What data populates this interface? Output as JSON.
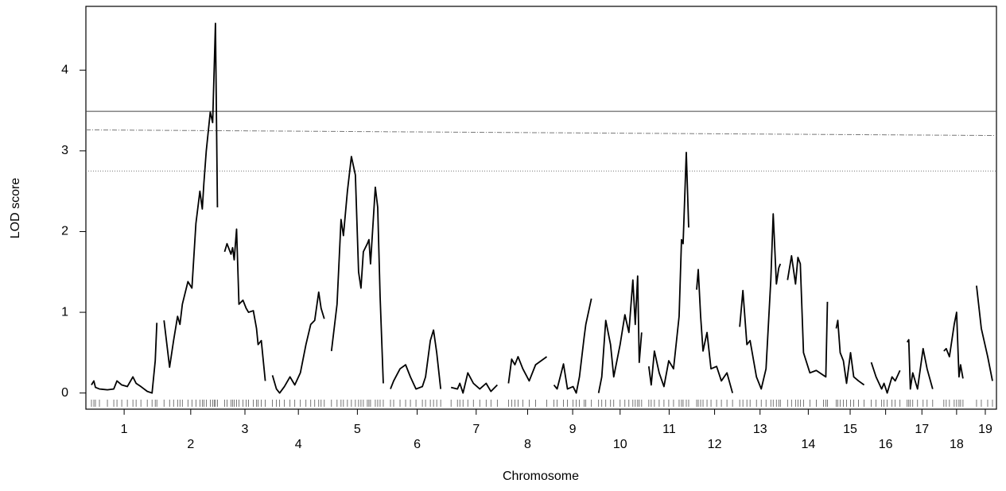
{
  "chart_data": {
    "type": "lod",
    "xlabel": "Chromosome",
    "ylabel": "LOD score",
    "ylim": [
      -0.2,
      4.79
    ],
    "yticks": [
      0,
      1,
      2,
      3,
      4
    ],
    "color": "#000000",
    "thresholds": [
      {
        "values": [
          3.49,
          3.49
        ],
        "style": "solid"
      },
      {
        "values": [
          3.26,
          3.19
        ],
        "style": "dashed"
      },
      {
        "values": [
          2.75,
          2.75
        ],
        "style": "dotted"
      }
    ],
    "series": [
      {
        "name": "1",
        "xlim": [
          0,
          82
        ],
        "x": [
          0,
          3,
          5,
          10,
          20,
          28,
          32,
          38,
          45,
          52,
          56,
          62,
          70,
          76,
          80,
          82
        ],
        "values": [
          0.1,
          0.15,
          0.07,
          0.05,
          0.04,
          0.05,
          0.15,
          0.1,
          0.08,
          0.2,
          0.12,
          0.08,
          0.02,
          0.0,
          0.4,
          0.87
        ]
      },
      {
        "name": "2",
        "xlim": [
          0,
          67
        ],
        "x": [
          0,
          7,
          12,
          17,
          20,
          23,
          30,
          35,
          40,
          45,
          48,
          50,
          53,
          58,
          61,
          63,
          64.5,
          67
        ],
        "values": [
          0.9,
          0.32,
          0.65,
          0.95,
          0.85,
          1.1,
          1.38,
          1.3,
          2.1,
          2.5,
          2.28,
          2.6,
          3.0,
          3.48,
          3.35,
          4.05,
          4.58,
          2.3
        ]
      },
      {
        "name": "3",
        "xlim": [
          0,
          51
        ],
        "x": [
          0,
          3,
          8,
          10,
          12,
          15,
          18,
          23,
          27,
          30,
          36,
          40,
          42,
          46,
          51
        ],
        "values": [
          1.75,
          1.85,
          1.72,
          1.8,
          1.65,
          2.03,
          1.1,
          1.15,
          1.05,
          1.0,
          1.02,
          0.8,
          0.6,
          0.65,
          0.15
        ]
      },
      {
        "name": "4",
        "xlim": [
          0,
          65
        ],
        "x": [
          0,
          5,
          9,
          15,
          22,
          28,
          35,
          42,
          48,
          53,
          58,
          61,
          65
        ],
        "values": [
          0.22,
          0.05,
          0.0,
          0.08,
          0.2,
          0.1,
          0.25,
          0.6,
          0.85,
          0.9,
          1.25,
          1.05,
          0.92
        ]
      },
      {
        "name": "5",
        "xlim": [
          0,
          65
        ],
        "x": [
          0,
          7,
          12,
          15,
          20,
          25,
          30,
          34,
          37,
          40,
          45,
          47,
          49,
          55,
          58,
          61,
          65
        ],
        "values": [
          0.52,
          1.1,
          2.15,
          1.95,
          2.5,
          2.93,
          2.7,
          1.5,
          1.3,
          1.75,
          1.85,
          1.9,
          1.6,
          2.55,
          2.3,
          1.2,
          0.12
        ]
      },
      {
        "name": "6",
        "xlim": [
          0,
          67
        ],
        "x": [
          0,
          4,
          12,
          19,
          25,
          32,
          40,
          44,
          50,
          54,
          58,
          63
        ],
        "values": [
          0.05,
          0.15,
          0.3,
          0.35,
          0.2,
          0.05,
          0.08,
          0.2,
          0.65,
          0.78,
          0.5,
          0.05
        ]
      },
      {
        "name": "7",
        "xlim": [
          0,
          63
        ],
        "x": [
          0,
          8,
          11,
          15,
          21,
          28,
          36,
          44,
          50,
          58
        ],
        "values": [
          0.07,
          0.05,
          0.12,
          0.0,
          0.25,
          0.12,
          0.05,
          0.12,
          0.02,
          0.1
        ]
      },
      {
        "name": "8",
        "xlim": [
          0,
          48
        ],
        "x": [
          0,
          4,
          8,
          12,
          18,
          26,
          34,
          48
        ],
        "values": [
          0.12,
          0.42,
          0.35,
          0.45,
          0.3,
          0.15,
          0.35,
          0.45
        ]
      },
      {
        "name": "9",
        "xlim": [
          0,
          47
        ],
        "x": [
          0,
          4,
          12,
          17,
          24,
          28,
          32,
          38,
          40,
          47
        ],
        "values": [
          0.1,
          0.05,
          0.36,
          0.05,
          0.08,
          0.0,
          0.2,
          0.7,
          0.85,
          1.17
        ]
      },
      {
        "name": "10",
        "xlim": [
          0,
          54
        ],
        "x": [
          0,
          4,
          9,
          15,
          19,
          27,
          33,
          38,
          43,
          46,
          49,
          51,
          54
        ],
        "values": [
          0.0,
          0.2,
          0.9,
          0.6,
          0.2,
          0.6,
          0.97,
          0.75,
          1.4,
          0.85,
          1.45,
          0.38,
          0.75
        ]
      },
      {
        "name": "11",
        "xlim": [
          0,
          51
        ],
        "x": [
          0,
          3,
          7,
          13,
          19,
          25,
          31,
          38,
          41,
          43,
          47,
          50
        ],
        "values": [
          0.33,
          0.1,
          0.52,
          0.25,
          0.08,
          0.4,
          0.3,
          0.95,
          1.9,
          1.85,
          2.98,
          2.05
        ]
      },
      {
        "name": "12",
        "xlim": [
          0,
          45
        ],
        "x": [
          0,
          2,
          5,
          8,
          13,
          18,
          25,
          31,
          38,
          45
        ],
        "values": [
          1.28,
          1.53,
          0.95,
          0.52,
          0.75,
          0.3,
          0.33,
          0.15,
          0.25,
          0.0
        ]
      },
      {
        "name": "13",
        "xlim": [
          0,
          51
        ],
        "x": [
          0,
          4,
          9,
          13,
          21,
          27,
          33,
          39,
          42,
          46,
          49,
          51
        ],
        "values": [
          0.82,
          1.27,
          0.6,
          0.65,
          0.2,
          0.05,
          0.3,
          1.4,
          2.22,
          1.35,
          1.55,
          1.6
        ]
      },
      {
        "name": "14",
        "xlim": [
          0,
          52
        ],
        "x": [
          0,
          5,
          10,
          13,
          16,
          20,
          28,
          36,
          45,
          48,
          50
        ],
        "values": [
          1.4,
          1.7,
          1.35,
          1.68,
          1.6,
          0.5,
          0.25,
          0.28,
          0.22,
          0.2,
          1.13
        ]
      },
      {
        "name": "15",
        "xlim": [
          0,
          35
        ],
        "x": [
          0,
          2,
          5,
          9,
          13,
          18,
          22,
          28,
          35
        ],
        "values": [
          0.8,
          0.9,
          0.5,
          0.4,
          0.12,
          0.5,
          0.2,
          0.15,
          0.1
        ]
      },
      {
        "name": "16",
        "xlim": [
          0,
          36
        ],
        "x": [
          0,
          6,
          13,
          16,
          20,
          26,
          30,
          36
        ],
        "values": [
          0.38,
          0.2,
          0.05,
          0.12,
          0.0,
          0.2,
          0.15,
          0.28
        ]
      },
      {
        "name": "17",
        "xlim": [
          0,
          37
        ],
        "x": [
          0,
          2,
          4,
          7,
          13,
          20,
          25,
          32
        ],
        "values": [
          0.63,
          0.66,
          0.05,
          0.25,
          0.05,
          0.55,
          0.3,
          0.05
        ]
      },
      {
        "name": "18",
        "xlim": [
          0,
          32
        ],
        "x": [
          0,
          3,
          7,
          13,
          16,
          19,
          21,
          24
        ],
        "values": [
          0.52,
          0.55,
          0.45,
          0.85,
          1.0,
          0.2,
          0.35,
          0.18
        ]
      },
      {
        "name": "19",
        "xlim": [
          0,
          22
        ],
        "x": [
          0,
          6,
          14,
          20
        ],
        "values": [
          1.33,
          0.8,
          0.45,
          0.15
        ]
      }
    ]
  }
}
